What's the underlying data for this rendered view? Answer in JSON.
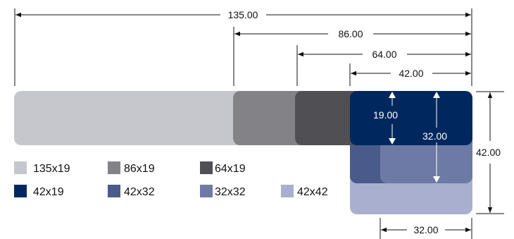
{
  "colors": {
    "c135x19": "#c6c7cc",
    "c86x19": "#838387",
    "c64x19": "#4f4f54",
    "c42x19": "#00285e",
    "c42x32": "#4a5a8a",
    "c32x32": "#6e7aa6",
    "c42x42": "#a8afcf"
  },
  "horizontal_dimensions": [
    {
      "label": "135.00"
    },
    {
      "label": "86.00"
    },
    {
      "label": "64.00"
    },
    {
      "label": "42.00"
    }
  ],
  "inner_dimensions": {
    "height_19": "19.00",
    "height_32": "32.00"
  },
  "right_dimension": {
    "label": "42.00"
  },
  "bottom_dimension": {
    "label": "32.00"
  },
  "legend": [
    {
      "label": "135x19"
    },
    {
      "label": "86x19"
    },
    {
      "label": "64x19"
    },
    {
      "label": "42x19"
    },
    {
      "label": "42x32"
    },
    {
      "label": "32x32"
    },
    {
      "label": "42x42"
    }
  ]
}
